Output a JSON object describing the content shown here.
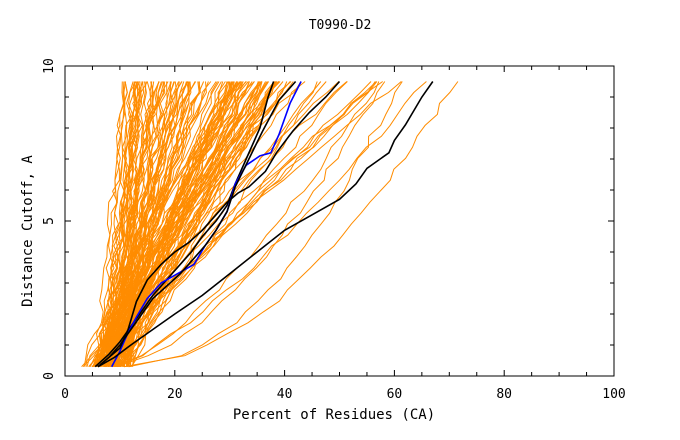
{
  "chart_data": {
    "type": "line",
    "title": "T0990-D2",
    "xlabel": "Percent of Residues (CA)",
    "ylabel": "Distance Cutoff, A",
    "xlim": [
      0,
      100
    ],
    "ylim": [
      0,
      10
    ],
    "x_ticks": [
      "0",
      "20",
      "40",
      "60",
      "80",
      "100"
    ],
    "y_ticks": [
      "0",
      "5",
      "10"
    ],
    "grid": false,
    "legend": "none",
    "colors": {
      "others": "#ff8c00",
      "highlight_black": "#000000",
      "highlight_blue": "#0000ff",
      "background": "#ffffff"
    },
    "series": [
      {
        "color": "#000000",
        "x": [
          5.5,
          8,
          10,
          12,
          14,
          16,
          18.5,
          21,
          23,
          25,
          27.5,
          29.5,
          31,
          33,
          35.5,
          37,
          38
        ],
        "y": [
          0.3,
          0.7,
          1.1,
          1.6,
          2.1,
          2.6,
          3.1,
          3.6,
          4.0,
          4.5,
          5.0,
          5.5,
          6.2,
          7.0,
          8.0,
          9.0,
          9.5
        ]
      },
      {
        "color": "#0000ff",
        "x": [
          8.5,
          10,
          11.5,
          13,
          15,
          17.5,
          20.5,
          23.5,
          25.5,
          27.5,
          29.5,
          31,
          33,
          35.5,
          37.5,
          39,
          41,
          43
        ],
        "y": [
          0.3,
          0.8,
          1.4,
          1.9,
          2.5,
          3.0,
          3.3,
          3.6,
          4.2,
          4.7,
          5.3,
          6.2,
          6.8,
          7.1,
          7.2,
          7.8,
          8.8,
          9.5
        ]
      },
      {
        "color": "#000000",
        "x": [
          6,
          8,
          10,
          12,
          14,
          16,
          18.5,
          21,
          23,
          25.5,
          27.5,
          29.5,
          31,
          33.5,
          36,
          39,
          42
        ],
        "y": [
          0.3,
          0.6,
          1.0,
          1.5,
          2.0,
          2.5,
          2.9,
          3.3,
          3.7,
          4.2,
          4.7,
          5.3,
          6.1,
          7.0,
          7.9,
          8.9,
          9.5
        ]
      },
      {
        "color": "#000000",
        "x": [
          6,
          8,
          10,
          11.5,
          13,
          15,
          17.5,
          20,
          22.5,
          25,
          27.5,
          29.5,
          31.5,
          33.5,
          36.5,
          38.5,
          41.5,
          44.5,
          47.5,
          50
        ],
        "y": [
          0.3,
          0.6,
          0.9,
          1.5,
          2.4,
          3.1,
          3.6,
          4.0,
          4.3,
          4.7,
          5.2,
          5.6,
          5.9,
          6.1,
          6.6,
          7.2,
          7.9,
          8.5,
          9.0,
          9.5
        ]
      },
      {
        "color": "#000000",
        "x": [
          6,
          9,
          12,
          16,
          20,
          25,
          30,
          35,
          40,
          45,
          50,
          53,
          55,
          59,
          60,
          62,
          65,
          67
        ],
        "y": [
          0.3,
          0.6,
          1.0,
          1.5,
          2.0,
          2.6,
          3.3,
          4.0,
          4.7,
          5.2,
          5.7,
          6.2,
          6.7,
          7.2,
          7.6,
          8.1,
          9.0,
          9.5
        ]
      }
    ]
  }
}
